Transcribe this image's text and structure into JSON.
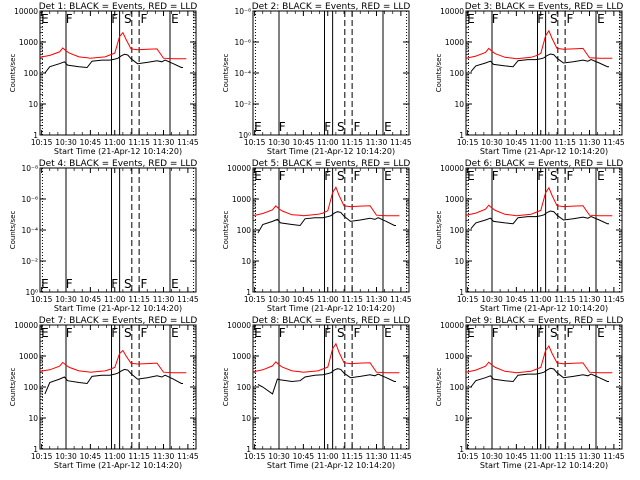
{
  "figure": {
    "xlabel": "Start Time (21-Apr-12 10:14:20)",
    "ylabel": "Counts/sec",
    "x_tick_labels": [
      "10:15",
      "10:30",
      "10:45",
      "11:00",
      "11:15",
      "11:30",
      "11:45"
    ],
    "y_tick_labels_log": [
      "1",
      "10",
      "100",
      "1000",
      "10000"
    ],
    "y_tick_labels_empty": [
      "10⁰",
      "10⁻²",
      "10⁻⁴",
      "10⁻⁶",
      "10⁻⁸"
    ],
    "colors": {
      "events": "#000000",
      "lld": "#ff0000",
      "background": "#ffffff"
    }
  },
  "chart_data": [
    {
      "type": "line",
      "title": "Det 1: BLACK = Events, RED = LLD",
      "markers": [
        "E",
        "F",
        "F",
        "S",
        "F",
        "E"
      ],
      "xlim": [
        "10:14",
        "11:50"
      ],
      "ylim": [
        1,
        10000
      ],
      "yscale": "log",
      "series": [
        {
          "color": "red",
          "x": [
            "10:14",
            "10:20",
            "10:26",
            "10:28",
            "10:30",
            "10:32",
            "10:38",
            "10:43",
            "10:45",
            "10:48",
            "10:54",
            "10:57",
            "11:00",
            "11:03",
            "11:05",
            "11:07",
            "11:10",
            "11:14",
            "11:20",
            "11:26",
            "11:30",
            "11:36",
            "11:44"
          ],
          "values": [
            320,
            370,
            480,
            640,
            520,
            440,
            330,
            310,
            300,
            310,
            330,
            380,
            440,
            1500,
            2000,
            1200,
            600,
            560,
            580,
            600,
            300,
            290,
            290
          ]
        },
        {
          "color": "black",
          "x": [
            "10:17",
            "10:20",
            "10:26",
            "10:29",
            "10:31",
            "10:38",
            "10:43",
            "10:46",
            "10:52",
            "10:57",
            "11:00",
            "11:02",
            "11:04",
            "11:06",
            "11:08",
            "11:10",
            "11:14",
            "11:20",
            "11:26",
            "11:29",
            "11:31",
            "11:36",
            "11:41",
            "11:42"
          ],
          "values": [
            100,
            160,
            200,
            230,
            180,
            160,
            150,
            240,
            260,
            260,
            280,
            300,
            360,
            400,
            380,
            290,
            200,
            220,
            250,
            230,
            260,
            200,
            150,
            150
          ]
        }
      ]
    },
    {
      "type": "line",
      "title": "Det 2: BLACK = Events, RED = LLD",
      "markers": [
        "E",
        "F",
        "F",
        "S",
        "F",
        "E"
      ],
      "xlim": [
        "10:14",
        "11:50"
      ],
      "ylim": [
        1,
        1e-08
      ],
      "yscale": "log",
      "series": []
    },
    {
      "type": "line",
      "title": "Det 3: BLACK = Events, RED = LLD",
      "markers": [
        "E",
        "F",
        "F",
        "S",
        "F",
        "E"
      ],
      "xlim": [
        "10:14",
        "11:50"
      ],
      "ylim": [
        1,
        10000
      ],
      "yscale": "log",
      "series": [
        {
          "color": "red",
          "x": [
            "10:14",
            "10:20",
            "10:26",
            "10:28",
            "10:30",
            "10:32",
            "10:38",
            "10:43",
            "10:45",
            "10:48",
            "10:54",
            "10:57",
            "11:00",
            "11:03",
            "11:05",
            "11:07",
            "11:10",
            "11:14",
            "11:20",
            "11:26",
            "11:30",
            "11:36",
            "11:44"
          ],
          "values": [
            300,
            350,
            460,
            620,
            500,
            420,
            320,
            300,
            290,
            300,
            320,
            360,
            430,
            1600,
            2300,
            1300,
            620,
            580,
            600,
            620,
            310,
            300,
            300
          ]
        },
        {
          "color": "black",
          "x": [
            "10:17",
            "10:20",
            "10:26",
            "10:29",
            "10:31",
            "10:38",
            "10:43",
            "10:46",
            "10:52",
            "10:57",
            "11:00",
            "11:02",
            "11:04",
            "11:06",
            "11:08",
            "11:10",
            "11:14",
            "11:20",
            "11:26",
            "11:29",
            "11:31",
            "11:36",
            "11:41",
            "11:42"
          ],
          "values": [
            110,
            170,
            210,
            240,
            190,
            170,
            160,
            250,
            270,
            270,
            290,
            310,
            370,
            410,
            390,
            300,
            210,
            230,
            260,
            240,
            270,
            210,
            160,
            160
          ]
        }
      ]
    },
    {
      "type": "line",
      "title": "Det 4: BLACK = Events, RED = LLD",
      "markers": [
        "E",
        "F",
        "F",
        "S",
        "F",
        "E"
      ],
      "xlim": [
        "10:14",
        "11:50"
      ],
      "ylim": [
        1,
        1e-08
      ],
      "yscale": "log",
      "series": []
    },
    {
      "type": "line",
      "title": "Det 5: BLACK = Events, RED = LLD",
      "markers": [
        "E",
        "F",
        "F",
        "S",
        "F",
        "E"
      ],
      "xlim": [
        "10:14",
        "11:50"
      ],
      "ylim": [
        1,
        10000
      ],
      "yscale": "log",
      "series": [
        {
          "color": "red",
          "x": [
            "10:14",
            "10:20",
            "10:26",
            "10:28",
            "10:30",
            "10:32",
            "10:38",
            "10:43",
            "10:45",
            "10:48",
            "10:54",
            "10:57",
            "11:00",
            "11:03",
            "11:05",
            "11:07",
            "11:10",
            "11:14",
            "11:20",
            "11:26",
            "11:30",
            "11:36",
            "11:44"
          ],
          "values": [
            290,
            340,
            450,
            600,
            480,
            410,
            310,
            300,
            290,
            300,
            320,
            350,
            420,
            1600,
            2400,
            1300,
            600,
            570,
            590,
            610,
            300,
            290,
            290
          ]
        },
        {
          "color": "black",
          "x": [
            "10:17",
            "10:20",
            "10:26",
            "10:29",
            "10:31",
            "10:38",
            "10:43",
            "10:46",
            "10:52",
            "10:57",
            "11:00",
            "11:02",
            "11:04",
            "11:06",
            "11:08",
            "11:10",
            "11:14",
            "11:20",
            "11:26",
            "11:29",
            "11:31",
            "11:36",
            "11:41",
            "11:42"
          ],
          "values": [
            80,
            150,
            190,
            220,
            170,
            150,
            140,
            230,
            250,
            250,
            270,
            290,
            350,
            390,
            370,
            280,
            190,
            210,
            240,
            220,
            250,
            190,
            140,
            140
          ]
        }
      ]
    },
    {
      "type": "line",
      "title": "Det 6: BLACK = Events, RED = LLD",
      "markers": [
        "E",
        "F",
        "F",
        "S",
        "F",
        "E"
      ],
      "xlim": [
        "10:14",
        "11:50"
      ],
      "ylim": [
        1,
        10000
      ],
      "yscale": "log",
      "series": [
        {
          "color": "red",
          "x": [
            "10:14",
            "10:20",
            "10:26",
            "10:28",
            "10:30",
            "10:32",
            "10:38",
            "10:43",
            "10:45",
            "10:48",
            "10:54",
            "10:57",
            "11:00",
            "11:03",
            "11:05",
            "11:07",
            "11:10",
            "11:14",
            "11:20",
            "11:26",
            "11:30",
            "11:36",
            "11:44"
          ],
          "values": [
            300,
            350,
            470,
            630,
            510,
            430,
            320,
            300,
            290,
            300,
            320,
            370,
            430,
            1600,
            2300,
            1300,
            610,
            570,
            590,
            610,
            300,
            290,
            290
          ]
        },
        {
          "color": "black",
          "x": [
            "10:17",
            "10:20",
            "10:26",
            "10:29",
            "10:31",
            "10:38",
            "10:43",
            "10:46",
            "10:52",
            "10:57",
            "11:00",
            "11:02",
            "11:04",
            "11:06",
            "11:08",
            "11:10",
            "11:14",
            "11:20",
            "11:26",
            "11:29",
            "11:31",
            "11:36",
            "11:41",
            "11:42"
          ],
          "values": [
            110,
            170,
            210,
            240,
            190,
            170,
            160,
            250,
            270,
            270,
            290,
            310,
            370,
            410,
            390,
            300,
            210,
            230,
            260,
            240,
            270,
            210,
            160,
            160
          ]
        }
      ]
    },
    {
      "type": "line",
      "title": "Det 7: BLACK = Events, RED = LLD",
      "markers": [
        "E",
        "F",
        "F",
        "S",
        "F",
        "E"
      ],
      "xlim": [
        "10:14",
        "11:50"
      ],
      "ylim": [
        1,
        10000
      ],
      "yscale": "log",
      "series": [
        {
          "color": "red",
          "x": [
            "10:14",
            "10:20",
            "10:26",
            "10:28",
            "10:30",
            "10:32",
            "10:38",
            "10:43",
            "10:45",
            "10:48",
            "10:54",
            "10:57",
            "11:00",
            "11:03",
            "11:05",
            "11:07",
            "11:10",
            "11:14",
            "11:20",
            "11:26",
            "11:30",
            "11:36",
            "11:44"
          ],
          "values": [
            320,
            360,
            470,
            620,
            510,
            430,
            330,
            310,
            300,
            310,
            330,
            370,
            430,
            1200,
            1500,
            1000,
            580,
            550,
            570,
            590,
            300,
            290,
            290
          ]
        },
        {
          "color": "black",
          "x": [
            "10:17",
            "10:20",
            "10:26",
            "10:29",
            "10:31",
            "10:38",
            "10:43",
            "10:46",
            "10:52",
            "10:57",
            "11:00",
            "11:02",
            "11:04",
            "11:06",
            "11:08",
            "11:10",
            "11:14",
            "11:20",
            "11:26",
            "11:29",
            "11:31",
            "11:36",
            "11:41",
            "11:42"
          ],
          "values": [
            60,
            140,
            180,
            210,
            160,
            140,
            130,
            220,
            240,
            240,
            260,
            280,
            330,
            370,
            350,
            270,
            180,
            200,
            230,
            210,
            240,
            180,
            130,
            130
          ]
        }
      ]
    },
    {
      "type": "line",
      "title": "Det 8: BLACK = Events, RED = LLD",
      "markers": [
        "E",
        "F",
        "F",
        "S",
        "F",
        "E"
      ],
      "xlim": [
        "10:14",
        "11:50"
      ],
      "ylim": [
        1,
        10000
      ],
      "yscale": "log",
      "series": [
        {
          "color": "red",
          "x": [
            "10:14",
            "10:20",
            "10:26",
            "10:28",
            "10:30",
            "10:32",
            "10:38",
            "10:43",
            "10:45",
            "10:48",
            "10:54",
            "10:57",
            "11:00",
            "11:03",
            "11:05",
            "11:07",
            "11:10",
            "11:14",
            "11:20",
            "11:26",
            "11:30",
            "11:36",
            "11:44"
          ],
          "values": [
            310,
            360,
            480,
            650,
            520,
            440,
            330,
            310,
            300,
            310,
            330,
            380,
            440,
            1700,
            2500,
            1300,
            610,
            570,
            590,
            610,
            300,
            290,
            290
          ]
        },
        {
          "color": "black",
          "x": [
            "10:17",
            "10:20",
            "10:26",
            "10:29",
            "10:31",
            "10:38",
            "10:43",
            "10:46",
            "10:52",
            "10:57",
            "11:00",
            "11:02",
            "11:04",
            "11:06",
            "11:08",
            "11:10",
            "11:14",
            "11:20",
            "11:26",
            "11:29",
            "11:31",
            "11:36",
            "11:41",
            "11:42"
          ],
          "values": [
            120,
            100,
            60,
            180,
            170,
            150,
            160,
            210,
            240,
            250,
            270,
            290,
            350,
            390,
            370,
            280,
            200,
            220,
            250,
            230,
            260,
            200,
            150,
            150
          ]
        }
      ]
    },
    {
      "type": "line",
      "title": "Det 9: BLACK = Events, RED = LLD",
      "markers": [
        "E",
        "F",
        "F",
        "S",
        "F",
        "E"
      ],
      "xlim": [
        "10:14",
        "11:50"
      ],
      "ylim": [
        1,
        10000
      ],
      "yscale": "log",
      "series": [
        {
          "color": "red",
          "x": [
            "10:14",
            "10:20",
            "10:26",
            "10:28",
            "10:30",
            "10:32",
            "10:38",
            "10:43",
            "10:45",
            "10:48",
            "10:54",
            "10:57",
            "11:00",
            "11:03",
            "11:05",
            "11:07",
            "11:10",
            "11:14",
            "11:20",
            "11:26",
            "11:30",
            "11:36",
            "11:44"
          ],
          "values": [
            300,
            350,
            470,
            630,
            510,
            430,
            320,
            300,
            290,
            300,
            320,
            370,
            430,
            1500,
            2100,
            1200,
            600,
            560,
            580,
            600,
            300,
            290,
            290
          ]
        },
        {
          "color": "black",
          "x": [
            "10:17",
            "10:20",
            "10:26",
            "10:29",
            "10:31",
            "10:38",
            "10:43",
            "10:46",
            "10:52",
            "10:57",
            "11:00",
            "11:02",
            "11:04",
            "11:06",
            "11:08",
            "11:10",
            "11:14",
            "11:20",
            "11:26",
            "11:29",
            "11:31",
            "11:36",
            "11:41",
            "11:42"
          ],
          "values": [
            100,
            160,
            200,
            230,
            180,
            160,
            150,
            240,
            260,
            260,
            280,
            300,
            360,
            400,
            380,
            290,
            200,
            220,
            250,
            230,
            260,
            200,
            150,
            150
          ]
        }
      ]
    }
  ]
}
